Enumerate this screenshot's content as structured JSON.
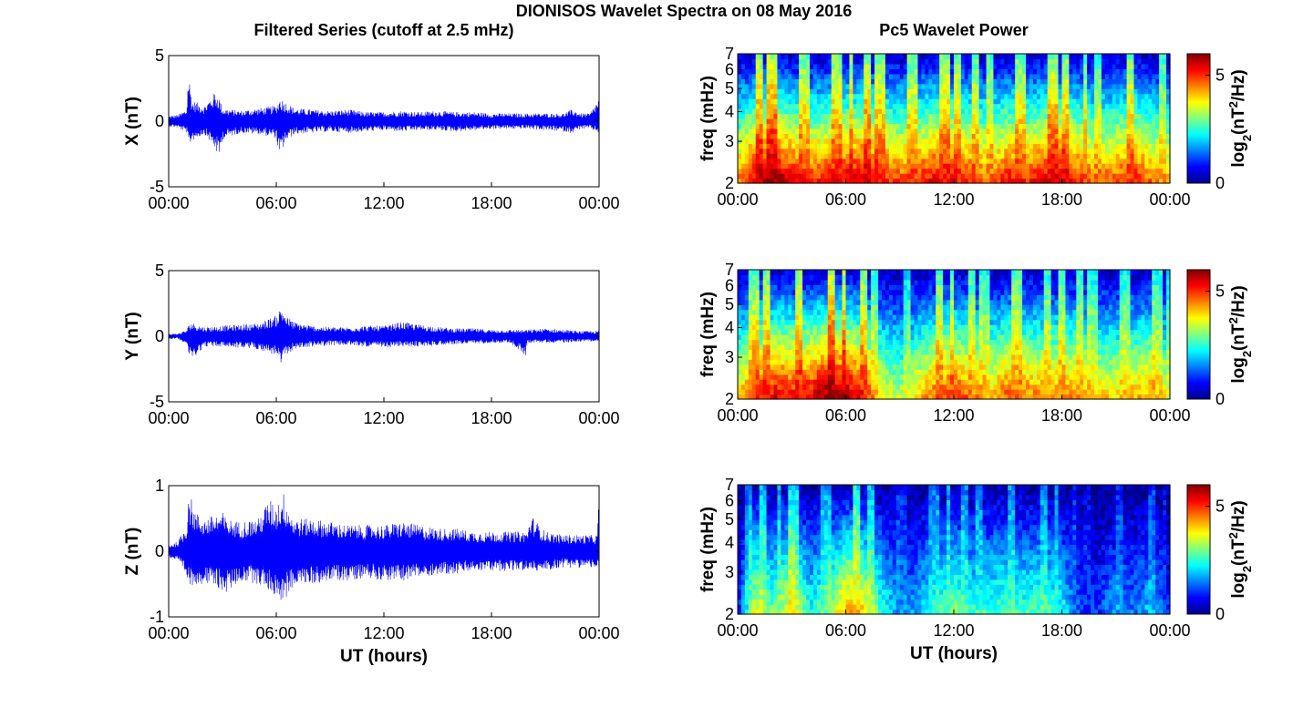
{
  "figure": {
    "title": "DIONISOS Wavelet Spectra on 08 May 2016",
    "left_title": "Filtered Series (cutoff at 2.5 mHz)",
    "right_title": "Pc5 Wavelet Power",
    "colors": {
      "trace": "#0000ff",
      "axes": "#000000",
      "background": "#ffffff"
    },
    "colormap": "jet"
  },
  "chart_data": [
    {
      "type": "line",
      "panel": "X",
      "title": "",
      "xlabel": "",
      "ylabel": "X (nT)",
      "xlim": [
        "00:00",
        "24:00"
      ],
      "ylim": [
        -5,
        5
      ],
      "yticks": [
        -5,
        0,
        5
      ],
      "xtick_labels": [
        "00:00",
        "06:00",
        "12:00",
        "18:00",
        "00:00"
      ],
      "grid": false,
      "series": [
        {
          "x_hours": [
            0,
            0.5,
            1,
            1.1,
            1.3,
            2,
            2.6,
            2.8,
            3,
            4,
            5,
            6,
            6.2,
            6.5,
            7,
            8,
            9,
            10,
            11,
            12,
            13,
            14,
            15,
            16,
            17,
            18,
            19,
            20,
            21,
            22,
            22.5,
            23,
            23.5,
            24
          ],
          "envelope_max": [
            0.4,
            0.5,
            0.9,
            3.9,
            1.6,
            1.2,
            2.3,
            1.9,
            1.0,
            0.8,
            1.0,
            1.2,
            1.8,
            1.5,
            1.0,
            0.9,
            0.8,
            0.9,
            0.7,
            0.7,
            0.8,
            0.7,
            0.8,
            0.7,
            0.7,
            0.6,
            0.6,
            0.6,
            0.6,
            0.6,
            0.9,
            0.6,
            0.6,
            1.8
          ],
          "envelope_min": [
            -0.4,
            -0.5,
            -0.9,
            -2.0,
            -1.5,
            -1.0,
            -2.2,
            -3.0,
            -1.4,
            -0.9,
            -1.0,
            -1.3,
            -2.9,
            -1.6,
            -1.0,
            -0.9,
            -0.8,
            -0.9,
            -0.8,
            -0.7,
            -0.8,
            -0.7,
            -0.7,
            -0.8,
            -0.7,
            -0.6,
            -0.6,
            -0.6,
            -0.7,
            -0.8,
            -0.9,
            -0.6,
            -0.6,
            -0.9
          ]
        }
      ]
    },
    {
      "type": "line",
      "panel": "Y",
      "title": "",
      "xlabel": "",
      "ylabel": "Y (nT)",
      "xlim": [
        "00:00",
        "24:00"
      ],
      "ylim": [
        -5,
        5
      ],
      "yticks": [
        -5,
        0,
        5
      ],
      "xtick_labels": [
        "00:00",
        "06:00",
        "12:00",
        "18:00",
        "00:00"
      ],
      "grid": false,
      "series": [
        {
          "x_hours": [
            0,
            0.5,
            1,
            1.2,
            2,
            3,
            4,
            5,
            6,
            6.3,
            6.6,
            7,
            8,
            9,
            10,
            11,
            12,
            13,
            14,
            15,
            16,
            17,
            18,
            19,
            19.9,
            20,
            21,
            22,
            23,
            24
          ],
          "envelope_max": [
            0.2,
            0.2,
            0.5,
            1.1,
            0.7,
            0.8,
            0.9,
            1.0,
            1.6,
            2.3,
            1.5,
            1.1,
            0.8,
            0.7,
            0.7,
            0.8,
            0.8,
            1.1,
            0.9,
            0.7,
            0.6,
            0.6,
            0.5,
            0.5,
            0.5,
            0.5,
            0.6,
            0.5,
            0.4,
            0.4
          ],
          "envelope_min": [
            -0.2,
            -0.2,
            -0.6,
            -1.9,
            -0.8,
            -0.8,
            -0.9,
            -1.0,
            -1.5,
            -2.3,
            -1.4,
            -1.0,
            -0.8,
            -0.7,
            -0.7,
            -0.8,
            -0.9,
            -0.8,
            -0.8,
            -0.7,
            -0.6,
            -0.6,
            -0.5,
            -0.5,
            -1.5,
            -0.5,
            -0.5,
            -0.5,
            -0.4,
            -0.4
          ]
        }
      ]
    },
    {
      "type": "line",
      "panel": "Z",
      "title": "",
      "xlabel": "UT (hours)",
      "ylabel": "Z (nT)",
      "xlim": [
        "00:00",
        "24:00"
      ],
      "ylim": [
        -1,
        1
      ],
      "yticks": [
        -1,
        0,
        1
      ],
      "xtick_labels": [
        "00:00",
        "06:00",
        "12:00",
        "18:00",
        "00:00"
      ],
      "grid": false,
      "series": [
        {
          "x_hours": [
            0,
            0.5,
            1,
            1.1,
            1.5,
            2,
            3,
            3.2,
            4,
            5,
            5.6,
            6,
            6.4,
            6.8,
            7,
            8,
            9,
            10,
            11,
            12,
            13,
            14,
            15,
            16,
            17,
            18,
            19,
            20,
            20.2,
            21,
            22,
            23,
            23.9,
            24
          ],
          "envelope_max": [
            0.1,
            0.15,
            0.4,
            0.95,
            0.6,
            0.5,
            0.6,
            0.5,
            0.45,
            0.5,
            0.8,
            0.7,
            0.9,
            0.6,
            0.5,
            0.5,
            0.45,
            0.4,
            0.4,
            0.4,
            0.45,
            0.4,
            0.35,
            0.35,
            0.3,
            0.3,
            0.3,
            0.3,
            0.55,
            0.3,
            0.25,
            0.25,
            0.25,
            0.95
          ],
          "envelope_min": [
            -0.1,
            -0.15,
            -0.4,
            -0.55,
            -0.5,
            -0.5,
            -0.6,
            -0.65,
            -0.45,
            -0.5,
            -0.6,
            -0.7,
            -0.8,
            -0.6,
            -0.5,
            -0.5,
            -0.45,
            -0.45,
            -0.4,
            -0.45,
            -0.45,
            -0.4,
            -0.35,
            -0.35,
            -0.3,
            -0.3,
            -0.3,
            -0.3,
            -0.3,
            -0.3,
            -0.25,
            -0.25,
            -0.25,
            -0.3
          ]
        }
      ]
    },
    {
      "type": "heatmap",
      "panel": "X",
      "title": "",
      "xlabel": "",
      "ylabel": "freq (mHz)",
      "xlim": [
        "00:00",
        "24:00"
      ],
      "ylim": [
        2,
        7
      ],
      "y_scale": "log",
      "yticks": [
        2,
        3,
        4,
        5,
        6,
        7
      ],
      "xtick_labels": [
        "00:00",
        "06:00",
        "12:00",
        "18:00",
        "00:00"
      ],
      "colorbar": {
        "label": "log2(nT^2/Hz)",
        "ticks": [
          0,
          5
        ],
        "range": [
          0,
          6
        ]
      },
      "time_hours": [
        0,
        1,
        2,
        3,
        4,
        5,
        6,
        7,
        8,
        9,
        10,
        11,
        12,
        13,
        14,
        15,
        16,
        17,
        18,
        19,
        20,
        21,
        22,
        23,
        24
      ],
      "low_freq_power": [
        4.5,
        5.6,
        6.0,
        5.4,
        5.0,
        5.2,
        5.4,
        5.6,
        5.2,
        4.8,
        5.0,
        5.4,
        5.2,
        5.0,
        4.6,
        5.2,
        5.0,
        5.4,
        5.6,
        5.0,
        4.6,
        4.8,
        5.2,
        4.6,
        4.2
      ]
    },
    {
      "type": "heatmap",
      "panel": "Y",
      "title": "",
      "xlabel": "",
      "ylabel": "freq (mHz)",
      "xlim": [
        "00:00",
        "24:00"
      ],
      "ylim": [
        2,
        7
      ],
      "y_scale": "log",
      "yticks": [
        2,
        3,
        4,
        5,
        6,
        7
      ],
      "xtick_labels": [
        "00:00",
        "06:00",
        "12:00",
        "18:00",
        "00:00"
      ],
      "colorbar": {
        "label": "log2(nT^2/Hz)",
        "ticks": [
          0,
          5
        ],
        "range": [
          0,
          6
        ]
      },
      "time_hours": [
        0,
        1,
        2,
        3,
        4,
        5,
        6,
        7,
        8,
        9,
        10,
        11,
        12,
        13,
        14,
        15,
        16,
        17,
        18,
        19,
        20,
        21,
        22,
        23,
        24
      ],
      "low_freq_power": [
        4.0,
        5.0,
        5.4,
        5.2,
        5.4,
        6.0,
        5.8,
        5.2,
        3.8,
        3.4,
        4.0,
        4.8,
        5.0,
        4.6,
        4.2,
        4.8,
        4.6,
        4.4,
        4.6,
        4.4,
        4.0,
        4.0,
        4.2,
        4.4,
        3.6
      ]
    },
    {
      "type": "heatmap",
      "panel": "Z",
      "title": "",
      "xlabel": "UT (hours)",
      "ylabel": "freq (mHz)",
      "xlim": [
        "00:00",
        "24:00"
      ],
      "ylim": [
        2,
        7
      ],
      "y_scale": "log",
      "yticks": [
        2,
        3,
        4,
        5,
        6,
        7
      ],
      "xtick_labels": [
        "00:00",
        "06:00",
        "12:00",
        "18:00",
        "00:00"
      ],
      "colorbar": {
        "label": "log2(nT^2/Hz)",
        "ticks": [
          0,
          5
        ],
        "range": [
          0,
          6
        ]
      },
      "time_hours": [
        0,
        1,
        2,
        3,
        4,
        5,
        6,
        7,
        8,
        9,
        10,
        11,
        12,
        13,
        14,
        15,
        16,
        17,
        18,
        19,
        20,
        21,
        22,
        23,
        24
      ],
      "low_freq_power": [
        0.8,
        3.8,
        2.8,
        4.0,
        2.4,
        3.0,
        4.4,
        4.0,
        2.6,
        1.6,
        1.8,
        2.6,
        3.0,
        2.6,
        2.6,
        2.8,
        2.6,
        2.8,
        2.4,
        1.2,
        1.0,
        1.8,
        1.4,
        2.0,
        0.8
      ]
    }
  ]
}
